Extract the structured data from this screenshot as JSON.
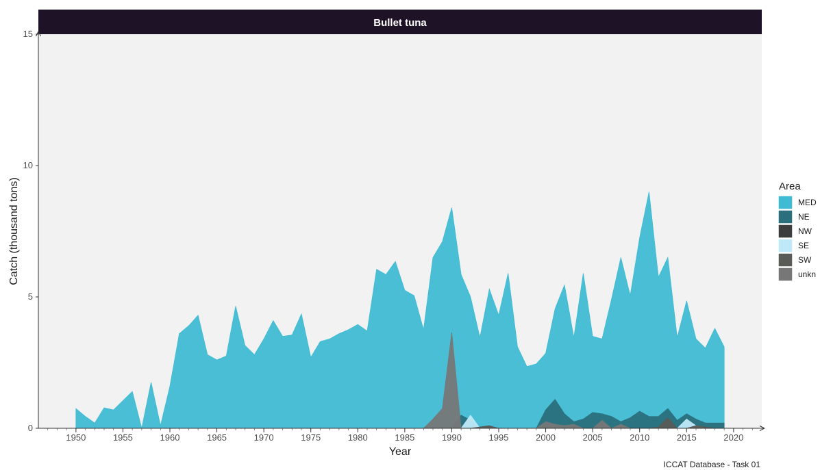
{
  "chart_data": {
    "type": "area",
    "title": "Bullet tuna",
    "xlabel": "Year",
    "ylabel": "Catch (thousand tons)",
    "caption": "ICCAT Database - Task 01",
    "legend_title": "Area",
    "legend_position": "right",
    "xlim": [
      1946,
      2023
    ],
    "ylim": [
      0,
      15
    ],
    "x_ticks": [
      "1950",
      "1955",
      "1960",
      "1965",
      "1970",
      "1975",
      "1980",
      "1985",
      "1990",
      "1995",
      "2000",
      "2005",
      "2010",
      "2015",
      "2020"
    ],
    "y_ticks": [
      "0",
      "5",
      "10",
      "15"
    ],
    "grid": false,
    "x": [
      1950,
      1951,
      1952,
      1953,
      1954,
      1955,
      1956,
      1957,
      1958,
      1959,
      1960,
      1961,
      1962,
      1963,
      1964,
      1965,
      1966,
      1967,
      1968,
      1969,
      1970,
      1971,
      1972,
      1973,
      1974,
      1975,
      1976,
      1977,
      1978,
      1979,
      1980,
      1981,
      1982,
      1983,
      1984,
      1985,
      1986,
      1987,
      1988,
      1989,
      1990,
      1991,
      1992,
      1993,
      1994,
      1995,
      1996,
      1997,
      1998,
      1999,
      2000,
      2001,
      2002,
      2003,
      2004,
      2005,
      2006,
      2007,
      2008,
      2009,
      2010,
      2011,
      2012,
      2013,
      2014,
      2015,
      2016,
      2017,
      2018,
      2019
    ],
    "series": [
      {
        "name": "MED",
        "color": "#3fbbd3",
        "values": [
          0.75,
          0.45,
          0.2,
          0.78,
          0.7,
          1.05,
          1.4,
          0.0,
          1.75,
          0.1,
          1.6,
          3.6,
          3.9,
          4.3,
          2.8,
          2.6,
          2.75,
          4.65,
          3.15,
          2.8,
          3.4,
          4.1,
          3.5,
          3.55,
          4.35,
          2.7,
          3.3,
          3.4,
          3.6,
          3.75,
          3.95,
          3.7,
          6.05,
          5.85,
          6.35,
          5.25,
          5.05,
          3.75,
          6.5,
          7.1,
          8.4,
          5.85,
          5.0,
          3.45,
          5.3,
          4.3,
          5.9,
          3.1,
          2.35,
          2.45,
          2.85,
          4.55,
          5.45,
          3.45,
          5.9,
          3.5,
          3.4,
          4.9,
          6.5,
          5.05,
          7.25,
          9.0,
          5.75,
          6.5,
          3.45,
          4.85,
          3.4,
          3.05,
          3.8,
          3.1
        ]
      },
      {
        "name": "NE",
        "color": "#2b6f7c",
        "values": [
          0,
          0,
          0,
          0,
          0,
          0,
          0,
          0,
          0,
          0,
          0,
          0,
          0,
          0,
          0,
          0,
          0,
          0,
          0,
          0,
          0,
          0,
          0,
          0,
          0,
          0,
          0,
          0,
          0,
          0,
          0,
          0,
          0,
          0,
          0,
          0,
          0,
          0,
          0,
          0,
          0,
          0.5,
          0.3,
          0,
          0,
          0,
          0,
          0,
          0,
          0,
          0.7,
          1.1,
          0.55,
          0.25,
          0.35,
          0.6,
          0.55,
          0.45,
          0.25,
          0.4,
          0.65,
          0.45,
          0.45,
          0.75,
          0.3,
          0.55,
          0.35,
          0.2,
          0.2,
          0.2
        ]
      },
      {
        "name": "NW",
        "color": "#3d3d3d",
        "values": [
          0,
          0,
          0,
          0,
          0,
          0,
          0,
          0,
          0,
          0,
          0,
          0,
          0,
          0,
          0,
          0,
          0,
          0,
          0,
          0,
          0,
          0,
          0,
          0,
          0,
          0,
          0,
          0,
          0,
          0,
          0,
          0,
          0,
          0,
          0,
          0,
          0,
          0,
          0,
          0,
          0,
          0,
          0,
          0,
          0,
          0,
          0,
          0,
          0,
          0,
          0,
          0,
          0,
          0,
          0,
          0,
          0,
          0,
          0,
          0,
          0,
          0,
          0,
          0,
          0,
          0,
          0,
          0,
          0,
          0
        ]
      },
      {
        "name": "SE",
        "color": "#bfe9f8",
        "values": [
          0,
          0,
          0,
          0,
          0,
          0,
          0,
          0,
          0,
          0,
          0,
          0,
          0,
          0,
          0,
          0,
          0,
          0,
          0,
          0,
          0,
          0,
          0,
          0,
          0,
          0,
          0,
          0,
          0,
          0,
          0,
          0,
          0,
          0,
          0,
          0,
          0,
          0,
          0,
          0,
          0,
          0,
          0.5,
          0,
          0,
          0,
          0,
          0,
          0,
          0,
          0,
          0,
          0,
          0,
          0,
          0,
          0,
          0,
          0,
          0,
          0,
          0,
          0,
          0,
          0,
          0.35,
          0.1,
          0,
          0,
          0
        ]
      },
      {
        "name": "SW",
        "color": "#595b57",
        "values": [
          0,
          0,
          0,
          0,
          0,
          0,
          0,
          0,
          0,
          0,
          0,
          0,
          0,
          0,
          0,
          0,
          0,
          0,
          0,
          0,
          0,
          0,
          0,
          0,
          0,
          0,
          0,
          0,
          0,
          0,
          0,
          0,
          0,
          0,
          0,
          0,
          0,
          0,
          0,
          0,
          0,
          0,
          0,
          0.05,
          0.1,
          0,
          0,
          0,
          0,
          0,
          0,
          0,
          0,
          0,
          0,
          0,
          0,
          0,
          0,
          0,
          0,
          0,
          0.05,
          0.4,
          0,
          0,
          0.1,
          0.05,
          0,
          0
        ]
      },
      {
        "name": "unkn",
        "color": "#777777",
        "values": [
          0,
          0,
          0,
          0,
          0,
          0,
          0,
          0,
          0,
          0,
          0,
          0,
          0,
          0,
          0,
          0,
          0,
          0,
          0,
          0,
          0,
          0,
          0,
          0,
          0,
          0,
          0,
          0,
          0,
          0,
          0,
          0,
          0,
          0,
          0,
          0,
          0,
          0,
          0.35,
          0.75,
          3.65,
          0,
          0,
          0,
          0,
          0,
          0,
          0,
          0,
          0,
          0.25,
          0.15,
          0.1,
          0.15,
          0,
          0,
          0.3,
          0,
          0.15,
          0,
          0,
          0,
          0,
          0,
          0,
          0,
          0,
          0,
          0,
          0
        ]
      }
    ]
  }
}
